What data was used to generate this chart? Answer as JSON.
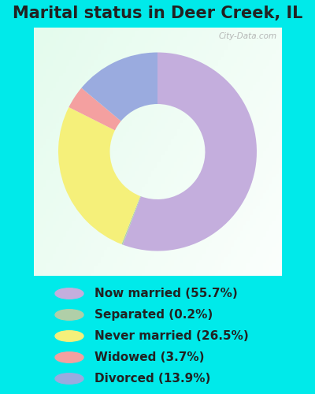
{
  "title": "Marital status in Deer Creek, IL",
  "slices": [
    55.7,
    0.2,
    26.5,
    3.7,
    13.9
  ],
  "labels": [
    "Now married (55.7%)",
    "Separated (0.2%)",
    "Never married (26.5%)",
    "Widowed (3.7%)",
    "Divorced (13.9%)"
  ],
  "colors": [
    "#c4aedd",
    "#b0cfa8",
    "#f5f07a",
    "#f4a0a0",
    "#9aabdf"
  ],
  "legend_colors": [
    "#c4aedd",
    "#b0cfa8",
    "#f5f07a",
    "#f4a0a0",
    "#9aabdf"
  ],
  "bg_outer": "#00eaea",
  "title_color": "#222222",
  "watermark": "City-Data.com",
  "title_fontsize": 15,
  "legend_fontsize": 11,
  "start_angle": 90
}
